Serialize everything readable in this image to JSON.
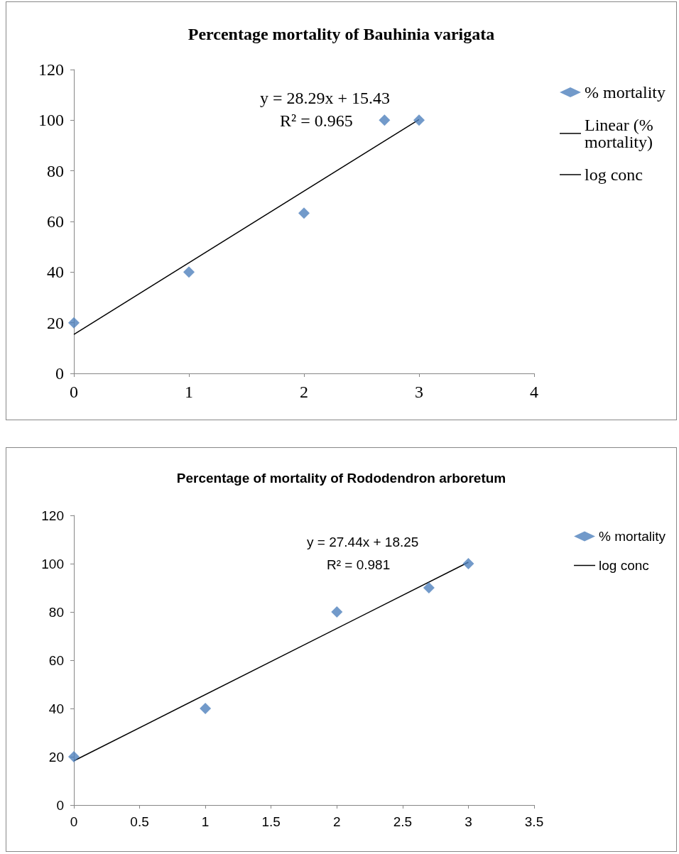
{
  "chart_data": [
    {
      "type": "scatter",
      "title": "Percentage mortality of Bauhinia varigata",
      "xlim": [
        0,
        4
      ],
      "xticks": [
        0,
        1,
        2,
        3,
        4
      ],
      "ylim": [
        0,
        120
      ],
      "yticks": [
        0,
        20,
        40,
        60,
        80,
        100,
        120
      ],
      "grid": false,
      "legend": "right",
      "annotations": [
        "y = 28.29x + 15.43",
        "R² = 0.965"
      ],
      "series": [
        {
          "name": "% mortality",
          "marker": "diamond",
          "color": "#4f81bd",
          "x": [
            0,
            1,
            2,
            2.7,
            3
          ],
          "values": [
            20,
            40,
            63.3,
            100,
            100
          ]
        },
        {
          "name": "Linear (% mortality)",
          "type": "line",
          "marker": "none",
          "line_style": "solid",
          "color": "#000000",
          "x": [
            0,
            3
          ],
          "values": [
            15.4,
            100.3
          ]
        },
        {
          "name": "log conc",
          "type": "line",
          "marker": "none",
          "line_style": "solid",
          "color": "#000000"
        }
      ]
    },
    {
      "type": "scatter",
      "title": "Percentage of mortality of Rododendron arboretum",
      "xlim": [
        0,
        3.5
      ],
      "xticks": [
        0,
        0.5,
        1,
        1.5,
        2,
        2.5,
        3,
        3.5
      ],
      "ylim": [
        0,
        120
      ],
      "yticks": [
        0,
        20,
        40,
        60,
        80,
        100,
        120
      ],
      "grid": false,
      "legend": "right",
      "annotations": [
        "y = 27.44x + 18.25",
        "R² = 0.981"
      ],
      "series": [
        {
          "name": "% mortality",
          "marker": "diamond",
          "color": "#4f81bd",
          "x": [
            0,
            1,
            2,
            2.7,
            3
          ],
          "values": [
            20,
            40,
            80,
            90,
            100
          ]
        },
        {
          "name": "log conc",
          "type": "line",
          "marker": "none",
          "line_style": "solid",
          "color": "#000000",
          "x": [
            0,
            3
          ],
          "values": [
            18.3,
            100.6
          ]
        }
      ]
    }
  ]
}
